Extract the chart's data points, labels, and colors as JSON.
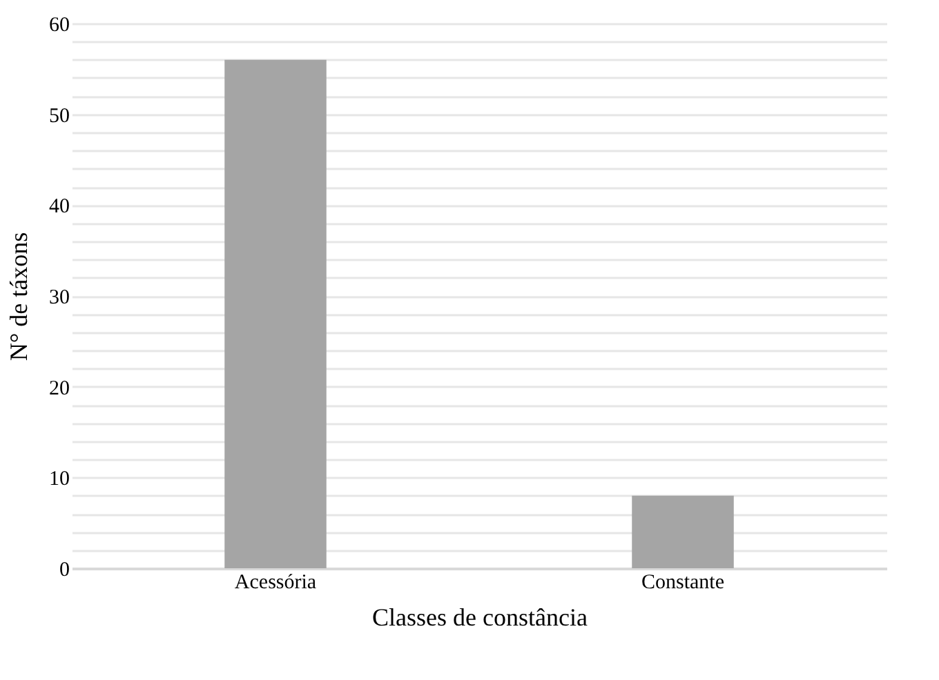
{
  "chart_data": {
    "type": "bar",
    "xlabel": "Classes de constância",
    "ylabel": "N° de táxons",
    "categories": [
      "Acessória",
      "Constante"
    ],
    "values": [
      56,
      8
    ],
    "color": "#a5a5a5",
    "ylim": [
      0,
      60
    ],
    "yticks": [
      0,
      {
        "value": 2,
        "label": null
      },
      {
        "value": 4,
        "label": null
      },
      {
        "value": 6,
        "label": null
      },
      {
        "value": 8,
        "label": null
      },
      10,
      {
        "value": 12,
        "label": null
      },
      {
        "value": 14,
        "label": null
      },
      {
        "value": 16,
        "label": null
      },
      {
        "value": 18,
        "label": null
      },
      20,
      {
        "value": 22,
        "label": null
      },
      {
        "value": 24,
        "label": null
      },
      {
        "value": 26,
        "label": null
      },
      {
        "value": 28,
        "label": null
      },
      30,
      {
        "value": 32,
        "label": null
      },
      {
        "value": 34,
        "label": null
      },
      {
        "value": 36,
        "label": null
      },
      {
        "value": 38,
        "label": null
      },
      40,
      {
        "value": 42,
        "label": null
      },
      {
        "value": 44,
        "label": null
      },
      {
        "value": 46,
        "label": null
      },
      {
        "value": 48,
        "label": null
      },
      50,
      {
        "value": 52,
        "label": null
      },
      {
        "value": 54,
        "label": null
      },
      {
        "value": 56,
        "label": null
      },
      {
        "value": 58,
        "label": null
      },
      60
    ],
    "grid": true
  }
}
